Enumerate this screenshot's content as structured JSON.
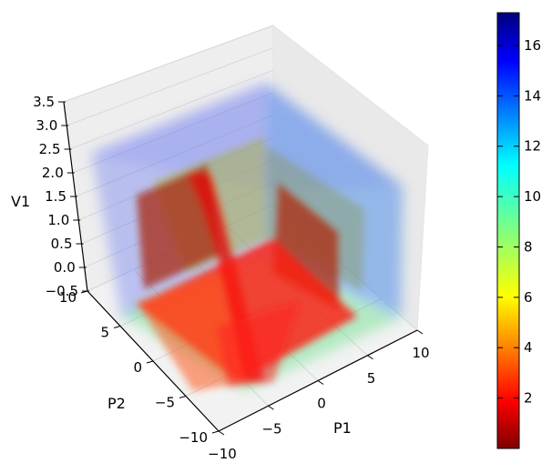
{
  "chart_data": {
    "type": "scatter",
    "projection": "3d",
    "title": "",
    "xlabel": "P1",
    "ylabel": "P2",
    "zlabel": "V1",
    "xlim": [
      -10,
      10
    ],
    "ylim": [
      -10,
      10
    ],
    "zlim": [
      -0.5,
      3.5
    ],
    "x_ticks": [
      "−10",
      "−5",
      "0",
      "5",
      "10"
    ],
    "y_ticks": [
      "−10",
      "−5",
      "0",
      "5",
      "10"
    ],
    "z_ticks": [
      "−0.5",
      "0.0",
      "0.5",
      "1.0",
      "1.5",
      "2.0",
      "2.5",
      "3.0",
      "3.5"
    ],
    "grid": true,
    "colormap": "jet",
    "colorbar": {
      "vmin": 0,
      "vmax": 17.3,
      "ticks": [
        "2",
        "4",
        "6",
        "8",
        "10",
        "12",
        "14",
        "16"
      ],
      "tick_values": [
        2,
        4,
        6,
        8,
        10,
        12,
        14,
        16
      ],
      "location": "right"
    }
  }
}
